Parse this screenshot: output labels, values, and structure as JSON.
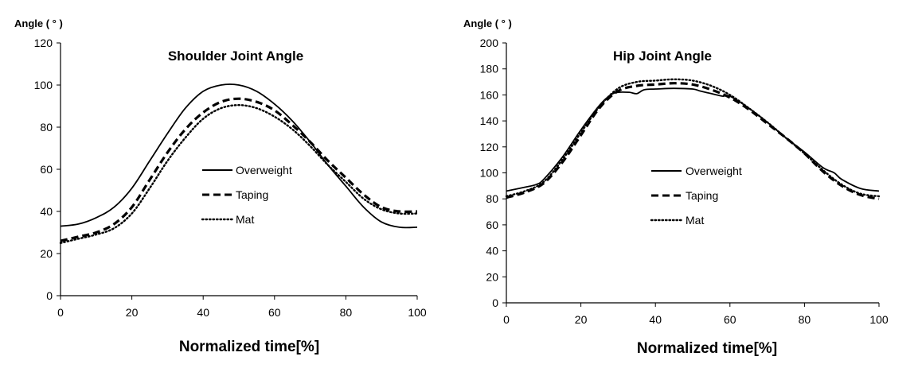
{
  "figure": {
    "charts_description": "two side-by-side line charts"
  },
  "chart_data": [
    {
      "type": "line",
      "title": "Shoulder Joint Angle",
      "xlabel": "Normalized time[%]",
      "ylabel": "Angle ( ° )",
      "xlim": [
        0,
        100
      ],
      "ylim": [
        0,
        120
      ],
      "xticks": [
        0,
        20,
        40,
        60,
        80,
        100
      ],
      "yticks": [
        0,
        20,
        40,
        60,
        80,
        100,
        120
      ],
      "grid": false,
      "legend_position": "center-right",
      "series": [
        {
          "name": "Overweight",
          "style": "solid",
          "color": "#000000",
          "x": [
            0,
            5,
            10,
            15,
            20,
            25,
            30,
            35,
            40,
            45,
            50,
            55,
            60,
            65,
            70,
            75,
            80,
            85,
            90,
            95,
            100
          ],
          "y": [
            33,
            34,
            37,
            42,
            51,
            64,
            77,
            89,
            97,
            100,
            100,
            97,
            91,
            83,
            73,
            62,
            52,
            42,
            35,
            32.5,
            32.5
          ]
        },
        {
          "name": "Taping",
          "style": "dashed",
          "color": "#000000",
          "x": [
            0,
            5,
            10,
            15,
            20,
            25,
            30,
            35,
            40,
            45,
            50,
            55,
            60,
            65,
            70,
            75,
            80,
            85,
            90,
            95,
            100
          ],
          "y": [
            26,
            28,
            30,
            34,
            42,
            55,
            68,
            79,
            87,
            92,
            93.5,
            92,
            88,
            81,
            73,
            64,
            56,
            48,
            42,
            40,
            40
          ]
        },
        {
          "name": "Mat",
          "style": "dotted",
          "color": "#000000",
          "x": [
            0,
            5,
            10,
            15,
            20,
            25,
            30,
            35,
            40,
            45,
            50,
            55,
            60,
            65,
            70,
            75,
            80,
            85,
            90,
            95,
            100
          ],
          "y": [
            25,
            27,
            29,
            32,
            39,
            51,
            64,
            75,
            84,
            89,
            90.5,
            89,
            85,
            79,
            71,
            62,
            54,
            46,
            41,
            39,
            39
          ]
        }
      ]
    },
    {
      "type": "line",
      "title": "Hip Joint Angle",
      "xlabel": "Normalized time[%]",
      "ylabel": "Angle ( ° )",
      "xlim": [
        0,
        100
      ],
      "ylim": [
        0,
        200
      ],
      "xticks": [
        0,
        20,
        40,
        60,
        80,
        100
      ],
      "yticks": [
        0,
        20,
        40,
        60,
        80,
        100,
        120,
        140,
        160,
        180,
        200
      ],
      "grid": false,
      "legend_position": "center-right",
      "series": [
        {
          "name": "Overweight",
          "style": "solid",
          "color": "#000000",
          "x": [
            0,
            5,
            8,
            10,
            15,
            20,
            25,
            28,
            30,
            33,
            35,
            37,
            40,
            45,
            50,
            52,
            55,
            58,
            60,
            65,
            70,
            75,
            80,
            85,
            88,
            90,
            95,
            100
          ],
          "y": [
            86,
            89,
            91,
            95,
            112,
            133,
            152,
            160,
            162,
            162,
            161,
            164,
            164.5,
            165,
            164.5,
            163,
            161,
            159,
            159,
            150,
            139,
            127,
            116,
            104,
            100,
            95,
            88,
            86
          ]
        },
        {
          "name": "Taping",
          "style": "dashed",
          "color": "#000000",
          "x": [
            0,
            5,
            10,
            15,
            20,
            25,
            30,
            35,
            40,
            45,
            50,
            55,
            60,
            65,
            70,
            75,
            80,
            85,
            90,
            95,
            100
          ],
          "y": [
            81,
            85,
            92,
            108,
            129,
            150,
            163,
            167,
            168,
            169,
            168,
            164,
            158,
            149,
            138,
            127,
            115,
            101,
            90,
            83,
            80
          ]
        },
        {
          "name": "Mat",
          "style": "dotted",
          "color": "#000000",
          "x": [
            0,
            5,
            10,
            15,
            20,
            25,
            30,
            35,
            40,
            45,
            50,
            55,
            60,
            65,
            70,
            75,
            80,
            85,
            90,
            95,
            100
          ],
          "y": [
            82,
            86,
            93,
            110,
            131,
            151,
            165,
            170,
            171,
            172,
            171,
            167,
            160,
            150,
            139,
            127,
            115,
            102,
            91,
            84,
            82
          ]
        }
      ]
    }
  ]
}
